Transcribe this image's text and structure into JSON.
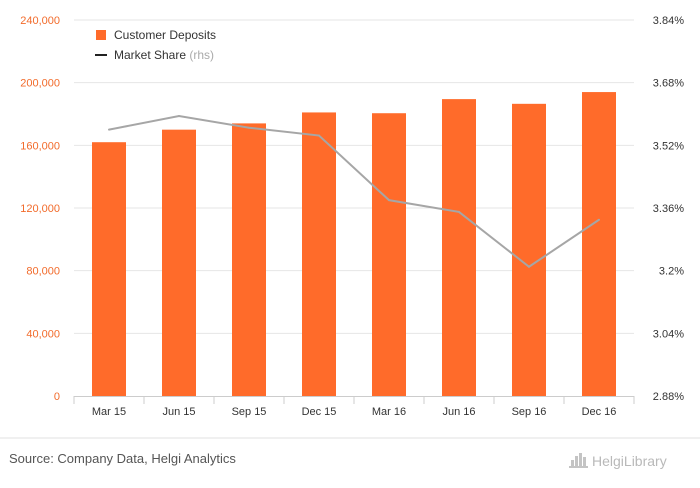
{
  "chart_data": {
    "type": "bar",
    "categories": [
      "Mar 15",
      "Jun 15",
      "Sep 15",
      "Dec 15",
      "Mar 16",
      "Jun 16",
      "Sep 16",
      "Dec 16"
    ],
    "series": [
      {
        "name": "Customer Deposits",
        "type": "bar",
        "axis": "left",
        "color": "#ff6b2a",
        "values": [
          162000,
          170000,
          174000,
          181000,
          180500,
          189500,
          186500,
          194000
        ]
      },
      {
        "name": "Market Share",
        "legend_note": "(rhs)",
        "type": "line",
        "axis": "right",
        "color": "#a6a6a6",
        "values": [
          3.56,
          3.595,
          3.565,
          3.545,
          3.38,
          3.35,
          3.21,
          3.33
        ]
      }
    ],
    "y_left": {
      "ylim": [
        0,
        240000
      ],
      "ticks": [
        0,
        40000,
        80000,
        120000,
        160000,
        200000,
        240000
      ],
      "tick_labels": [
        "0",
        "40,000",
        "80,000",
        "120,000",
        "160,000",
        "200,000",
        "240,000"
      ]
    },
    "y_right": {
      "ylim": [
        2.88,
        3.84
      ],
      "ticks": [
        2.88,
        3.04,
        3.2,
        3.36,
        3.52,
        3.68,
        3.84
      ],
      "tick_labels": [
        "2.88%",
        "3.04%",
        "3.2%",
        "3.36%",
        "3.52%",
        "3.68%",
        "3.84%"
      ]
    },
    "grid": true,
    "legend_position": "top-left"
  },
  "footer": {
    "source": "Source: Company Data, Helgi Analytics",
    "logo_text": "HelgiLibrary"
  }
}
